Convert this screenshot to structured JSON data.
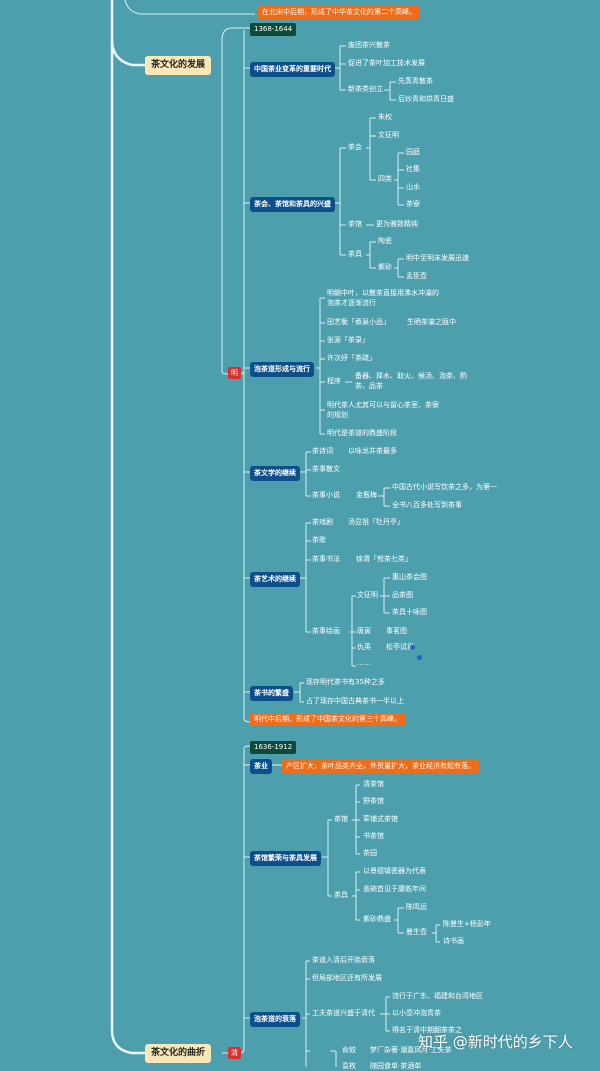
{
  "top_note": "在北宋中后期，形成了中华茶文化的第二个高峰。",
  "main_dev": "茶文化的发展",
  "main_tw": "茶文化的曲折",
  "ming": {
    "label": "明",
    "date": "1368-1644",
    "b1": {
      "title": "中国茶业变革的重要时代",
      "i1": "废团茶兴散茶",
      "i2": "促进了茶叶加工技术发展",
      "i3": "新茶类创立",
      "i3a": "先蒸青散茶",
      "i3b": "后炒青和烘青日盛"
    },
    "b2": {
      "title": "茶会、茶馆和茶具的兴盛",
      "chahui": "茶会",
      "zhuquan": "朱权",
      "wzm": "文征明",
      "silei": "四类",
      "yuanting": "园庭",
      "sheji": "社集",
      "shanshui": "山水",
      "chaliao": "茶寮",
      "chaguan": "茶馆",
      "chaguan_note": "更为雅致精纯",
      "chaju": "茶具",
      "taoci": "陶瓷",
      "zisha": "紫砂",
      "zisha1": "明中至明末发展迅速",
      "zisha2": "孟臣壶"
    },
    "b3": {
      "title": "泡茶道形成与流行",
      "i1a": "明朝中叶，以散茶直接用沸水冲瀹的",
      "i1b": "泡茶才逐渐流行",
      "i2": "田艺衡「煮泉小品」",
      "i2n": "生晒茶瀹之瓯中",
      "i3": "张源「茶录」",
      "i4": "许次纾「茶疏」",
      "i5": "程序",
      "i5a": "备器、择水、取火、候汤、泡茶、酌",
      "i5b": "茶、品茶",
      "i6a": "明代茶人尤其可以与留心茶室、茶寮",
      "i6b": "的规划",
      "i7": "明代是茶道的鼎盛阶段"
    },
    "b4": {
      "title": "茶文学的继续",
      "i1": "茶诗词",
      "i1n": "以咏龙井茶最多",
      "i2": "茶事散文",
      "i3": "茶事小说",
      "i3n": "金瓶梅",
      "i3a": "中国古代小说写饮茶之多，为第一",
      "i3b": "全书八百多处写到茶事"
    },
    "b5": {
      "title": "茶艺术的继续",
      "i1": "茶戏剧",
      "i1n": "汤显祖「牡丹亭」",
      "i2": "茶歌",
      "i3": "茶事书法",
      "i3n": "徐渭「煎茶七类」",
      "i4": "茶事绘画",
      "wzm": "文征明",
      "w1": "惠山茶会图",
      "w2": "品茶图",
      "w3": "茶具十咏图",
      "tangyin": "唐寅",
      "ty": "事茗图",
      "qiuying": "仇英",
      "qy": "松亭试泉",
      "etc": "……"
    },
    "b6": {
      "title": "茶书的繁盛",
      "i1": "现存明代茶书有35种之多",
      "i2": "占了现存中国古典茶书一半以上"
    },
    "note": "明代中后期，形成了中国茶文化的第三个高峰。"
  },
  "qing": {
    "label": "清",
    "date": "1636-1912",
    "b1": {
      "title": "茶业",
      "note": "产区扩大，茶叶品类齐全，外贸量扩大，茶业经济有起有落。"
    },
    "b2": {
      "title": "茶馆繁荣与茶具发展",
      "chaguan": "茶馆",
      "g1": "清茶馆",
      "g2": "野茶馆",
      "g3": "荤铺式茶馆",
      "g4": "书茶馆",
      "g5": "茶园",
      "chaju": "茶具",
      "j1": "以景德镇瓷器为代表",
      "j2": "盖碗首见于康乾年间",
      "j3": "紫砂鼎盛",
      "j3a": "陈鸣远",
      "j3b": "曼生壶",
      "j3b1": "陈曼生+杨彭年",
      "j3b2": "诗书画"
    },
    "b3": {
      "title": "泡茶道的衰落",
      "i1": "茶道入清后开始衰落",
      "i2": "但局部地区还有所发展",
      "i3": "工夫茶道兴盛于清代",
      "i3a": "流行于广东、福建和台湾地区",
      "i3b": "以小壶冲泡青茶",
      "i3c": "得名于清中期翻茶茶之",
      "i4": "俞蛟",
      "i4n": "梦厂杂著·潮嘉风月·工夫茶",
      "i5": "袁枚",
      "i5n": "随园食单·茶酒单"
    }
  },
  "watermark": "知乎 @新时代的乡下人"
}
